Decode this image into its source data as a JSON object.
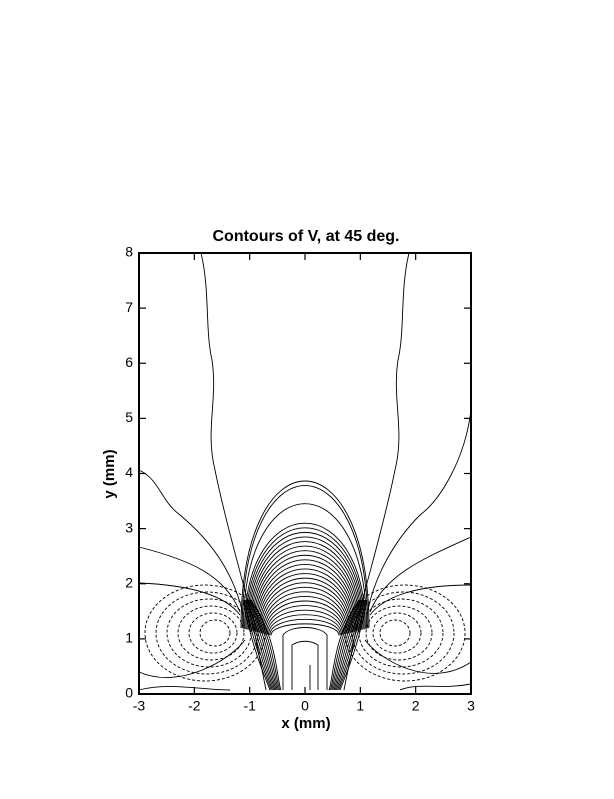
{
  "chart_data": {
    "type": "contour",
    "title": "Contours of V, at 45 deg.",
    "xlabel": "x (mm)",
    "ylabel": "y (mm)",
    "xlim": [
      -3,
      3
    ],
    "ylim": [
      0,
      8
    ],
    "xticks": [
      -3,
      -2,
      -1,
      0,
      1,
      2,
      3
    ],
    "yticks": [
      0,
      1,
      2,
      3,
      4,
      5,
      6,
      7,
      8
    ],
    "color": "#000000"
  }
}
